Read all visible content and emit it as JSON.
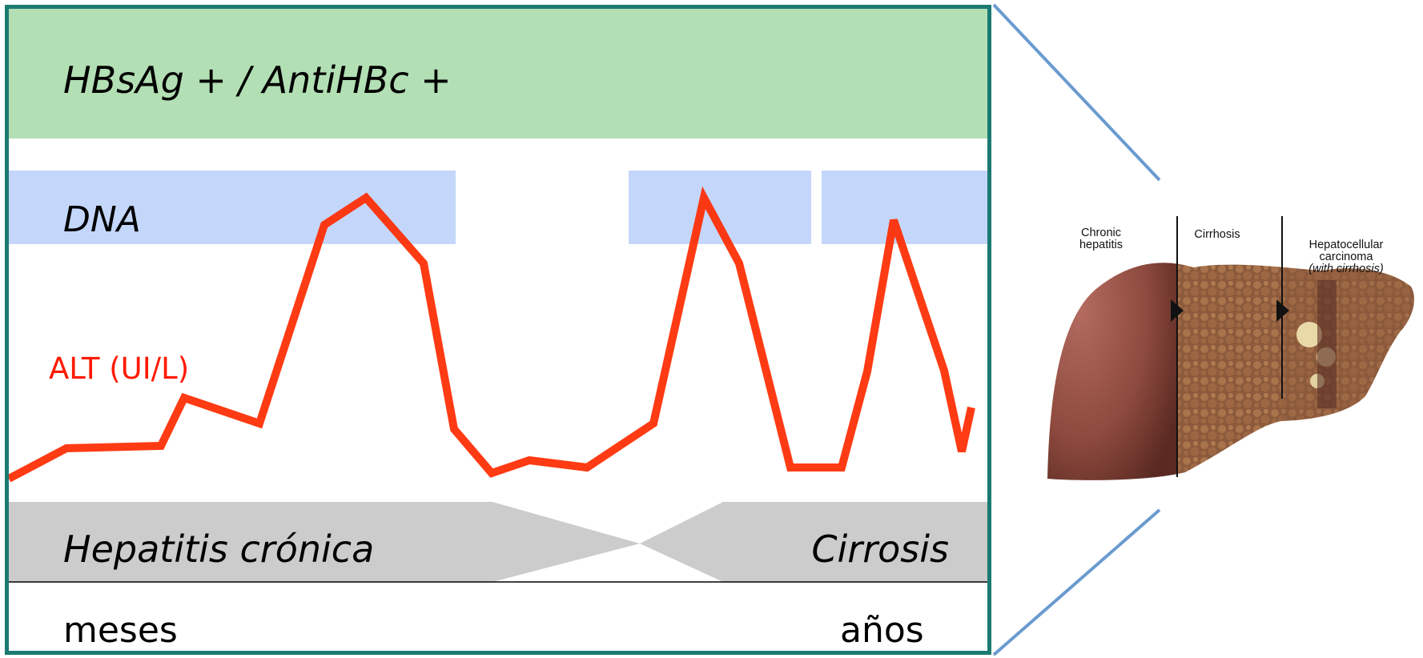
{
  "diagram": {
    "serology_label": "HBsAg + / AntiHBc +",
    "dna_label": "DNA",
    "alt_label": "ALT (UI/L)",
    "stage_left": "Hepatitis crónica",
    "stage_right": "Cirrosis",
    "time_left": "meses",
    "time_right": "años"
  },
  "liver_illustration": {
    "caption_chronic": "Chronic\nhepatitis",
    "caption_cirrhosis": "Cirrhosis",
    "caption_hcc": "Hepatocellular\ncarcinoma",
    "caption_hcc_note": "(with cirrhosis)"
  },
  "colors": {
    "frame": "#1b7a72",
    "serology_band": "#b2dfb4",
    "dna_band": "#c4d7fb",
    "alt_line": "#ff2a00",
    "stage_band": "#cccccc",
    "zoom_lines": "#6a9bd0"
  }
}
